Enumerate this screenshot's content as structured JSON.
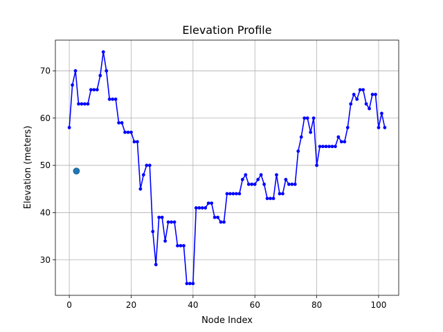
{
  "chart_data": {
    "type": "line",
    "title": "Elevation Profile",
    "xlabel": "Node Index",
    "ylabel": "Elevation (meters)",
    "xlim": [
      -4.5,
      106.5
    ],
    "ylim": [
      22.5,
      76.5
    ],
    "xticks": [
      0,
      20,
      40,
      60,
      80,
      100
    ],
    "yticks": [
      30,
      40,
      50,
      60,
      70
    ],
    "xtick_labels": [
      "0",
      "20",
      "40",
      "60",
      "80",
      "100"
    ],
    "ytick_labels": [
      "30",
      "40",
      "50",
      "60",
      "70"
    ],
    "grid": true,
    "series": [
      {
        "color": "#0000ff",
        "marker": "circle",
        "x": [
          0,
          1,
          2,
          3,
          4,
          5,
          6,
          7,
          8,
          9,
          10,
          11,
          12,
          13,
          14,
          15,
          16,
          17,
          18,
          19,
          20,
          21,
          22,
          23,
          24,
          25,
          26,
          27,
          28,
          29,
          30,
          31,
          32,
          33,
          34,
          35,
          36,
          37,
          38,
          39,
          40,
          41,
          42,
          43,
          44,
          45,
          46,
          47,
          48,
          49,
          50,
          51,
          52,
          53,
          54,
          55,
          56,
          57,
          58,
          59,
          60,
          61,
          62,
          63,
          64,
          65,
          66,
          67,
          68,
          69,
          70,
          71,
          72,
          73,
          74,
          75,
          76,
          77,
          78,
          79,
          80,
          81,
          82,
          83,
          84,
          85,
          86,
          87,
          88,
          89,
          90,
          91,
          92,
          93,
          94,
          95,
          96,
          97,
          98,
          99,
          100,
          101,
          102
        ],
        "y": [
          58,
          67,
          70,
          63,
          63,
          63,
          63,
          66,
          66,
          66,
          69,
          74,
          70,
          64,
          64,
          64,
          59,
          59,
          57,
          57,
          57,
          55,
          55,
          45,
          48,
          50,
          50,
          36,
          29,
          39,
          39,
          34,
          38,
          38,
          38,
          33,
          33,
          33,
          25,
          25,
          25,
          41,
          41,
          41,
          41,
          42,
          42,
          39,
          39,
          38,
          38,
          44,
          44,
          44,
          44,
          44,
          47,
          48,
          46,
          46,
          46,
          47,
          48,
          46,
          43,
          43,
          43,
          48,
          44,
          44,
          47,
          46,
          46,
          46,
          53,
          56,
          60,
          60,
          57,
          60,
          50,
          54,
          54,
          54,
          54,
          54,
          54,
          56,
          55,
          55,
          58,
          63,
          65,
          64,
          66,
          66,
          63,
          62,
          65,
          65,
          58,
          61,
          58
        ]
      }
    ],
    "highlight_point": {
      "x": 2.3,
      "y": 48.8,
      "color": "#1f77b4"
    }
  }
}
